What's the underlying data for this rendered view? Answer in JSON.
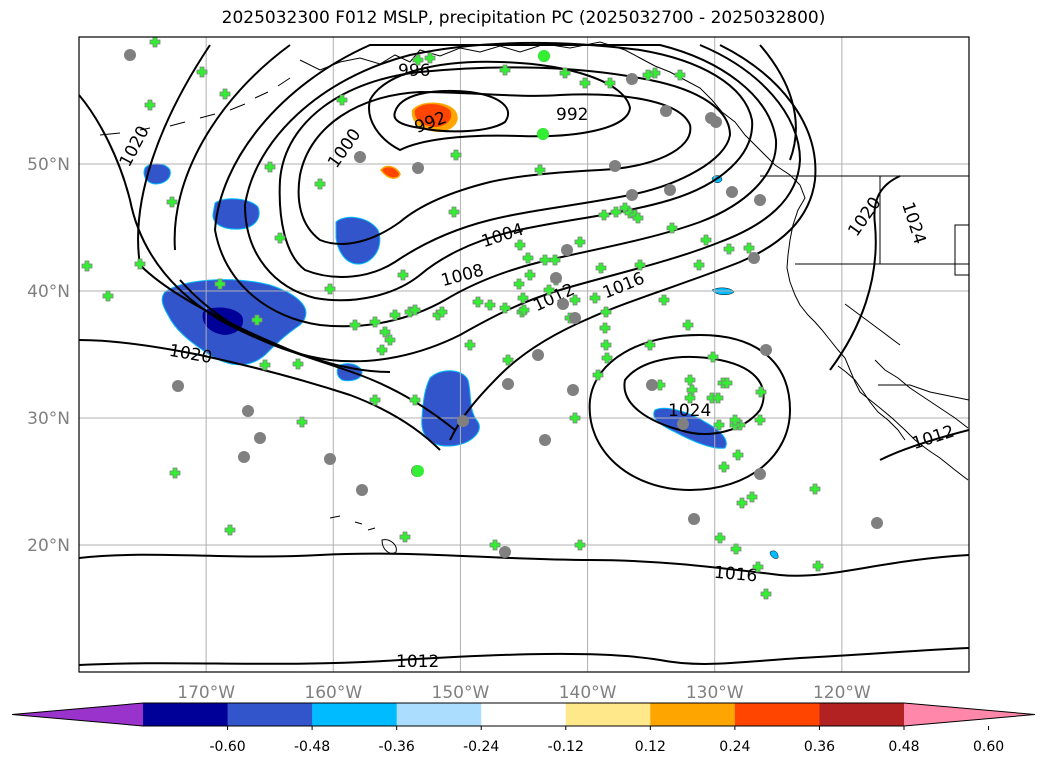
{
  "title": "2025032300 F012 MSLP, precipitation PC (2025032700 - 2025032800)",
  "map": {
    "lon_range": [
      -180,
      -110
    ],
    "lat_range": [
      10,
      60
    ],
    "lat_ticks": [
      {
        "v": 20,
        "label": "20°N"
      },
      {
        "v": 30,
        "label": "30°N"
      },
      {
        "v": 40,
        "label": "40°N"
      },
      {
        "v": 50,
        "label": "50°N"
      }
    ],
    "lon_ticks": [
      {
        "v": -170,
        "label": "170°W"
      },
      {
        "v": -160,
        "label": "160°W"
      },
      {
        "v": -150,
        "label": "150°W"
      },
      {
        "v": -140,
        "label": "140°W"
      },
      {
        "v": -130,
        "label": "130°W"
      },
      {
        "v": -120,
        "label": "120°W"
      }
    ],
    "grid": true,
    "contour_labels": [
      "996",
      "992",
      "1000",
      "1020",
      "1004",
      "1008",
      "1012",
      "1016",
      "1020",
      "1024",
      "1020",
      "1024",
      "1012",
      "1016",
      "1012"
    ]
  },
  "colorbar": {
    "colors": [
      "#9933cc",
      "#000099",
      "#3355cc",
      "#00bbff",
      "#aaddff",
      "#ffffff",
      "#ffe88a",
      "#ffa500",
      "#ff4500",
      "#b22222",
      "#ff88aa"
    ],
    "ticks": [
      "-0.60",
      "-0.48",
      "-0.36",
      "-0.24",
      "-0.12",
      "0.12",
      "0.24",
      "0.36",
      "0.48",
      "0.60"
    ]
  },
  "station_colors": {
    "marker": "#33ee33",
    "ring": "#808080"
  }
}
